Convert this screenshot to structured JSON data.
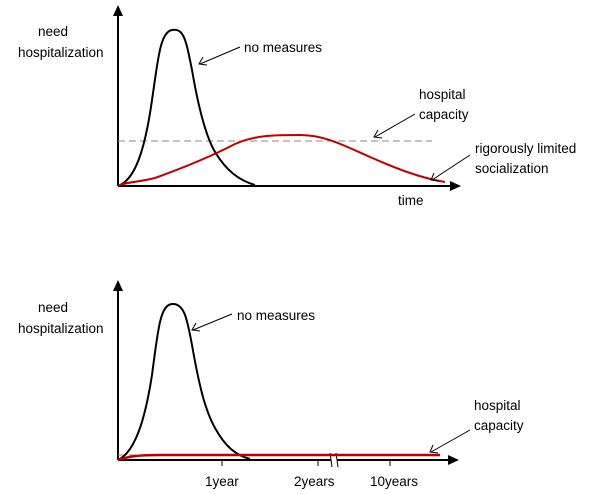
{
  "colors": {
    "axis": "#000000",
    "no_measures_curve": "#000000",
    "limited_curve": "#c00000",
    "capacity_line": "#8a8a8a",
    "background": "#ffffff"
  },
  "top": {
    "y_axis_label_line1": "need",
    "y_axis_label_line2": "hospitalization",
    "x_axis_label": "time",
    "no_measures_label": "no measures",
    "capacity_label_line1": "hospital",
    "capacity_label_line2": "capacity",
    "limited_label_line1": "rigorously limited",
    "limited_label_line2": "socialization"
  },
  "bottom": {
    "y_axis_label_line1": "need",
    "y_axis_label_line2": "hospitalization",
    "no_measures_label": "no measures",
    "capacity_label_line1": "hospital",
    "capacity_label_line2": "capacity",
    "tick_labels": [
      "1year",
      "2years",
      "10years"
    ]
  }
}
